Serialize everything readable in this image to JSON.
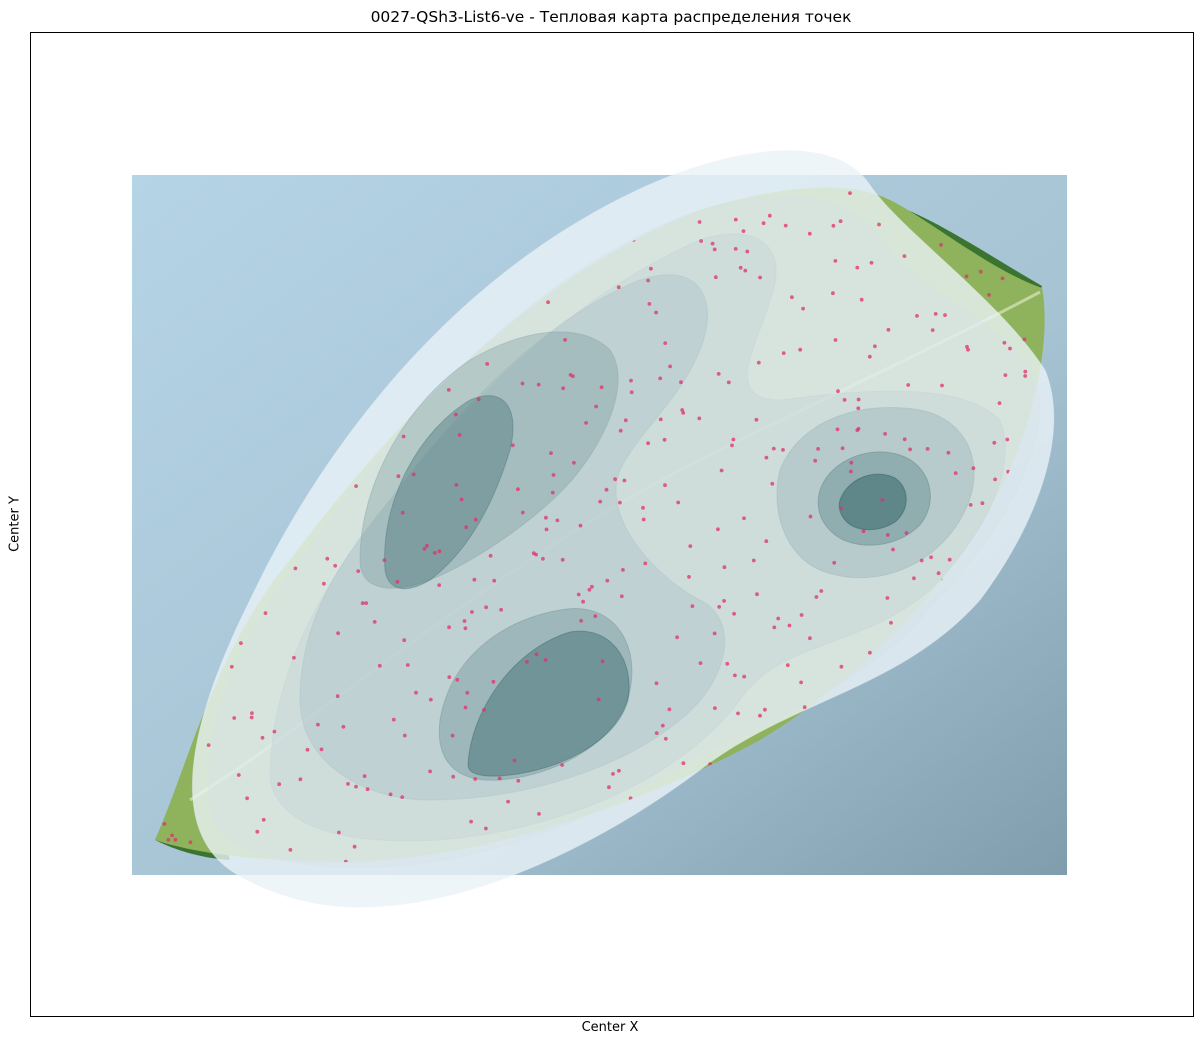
{
  "chart_data": {
    "type": "heatmap",
    "title": "0027-QSh3-List6-ve - Тепловая карта распределения точек",
    "xlabel": "Center X",
    "ylabel": "Center Y",
    "grid": false,
    "axis_ticks": "hidden",
    "legend": "none",
    "background_image": "leaf-photo",
    "colors": {
      "photo_bg": "#a9c6d6",
      "leaf": "#8fb25c",
      "leaf_dark_tip": "#2f6a1e",
      "density_light": "#eaf2f8",
      "density_dark": "#114a50",
      "point": "#e0306a"
    },
    "density_peaks": [
      {
        "name": "peak-upper-left",
        "level": "high"
      },
      {
        "name": "peak-lower-center",
        "level": "high"
      },
      {
        "name": "peak-right",
        "level": "high"
      }
    ],
    "density_levels": 10
  }
}
